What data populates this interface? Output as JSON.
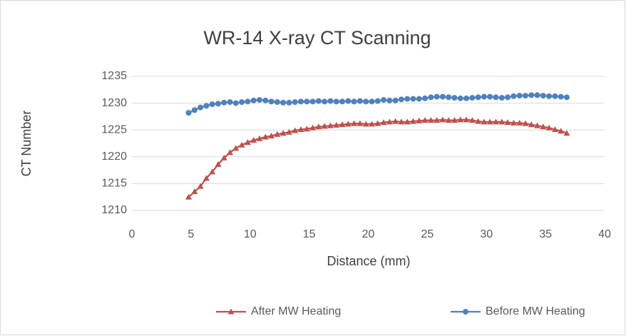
{
  "chart_data": {
    "type": "line",
    "title": "WR-14 X-ray CT Scanning",
    "x_label": "Distance (mm)",
    "y_label": "CT Number",
    "x": [
      4.8,
      5.3,
      5.8,
      6.3,
      6.8,
      7.3,
      7.8,
      8.3,
      8.8,
      9.3,
      9.8,
      10.3,
      10.8,
      11.3,
      11.8,
      12.3,
      12.8,
      13.3,
      13.8,
      14.3,
      14.8,
      15.3,
      15.8,
      16.3,
      16.8,
      17.3,
      17.8,
      18.3,
      18.8,
      19.3,
      19.8,
      20.3,
      20.8,
      21.3,
      21.8,
      22.3,
      22.8,
      23.3,
      23.8,
      24.3,
      24.8,
      25.3,
      25.8,
      26.3,
      26.8,
      27.3,
      27.8,
      28.3,
      28.8,
      29.3,
      29.8,
      30.3,
      30.8,
      31.3,
      31.8,
      32.3,
      32.8,
      33.3,
      33.8,
      34.3,
      34.8,
      35.3,
      35.8,
      36.3,
      36.8
    ],
    "series": [
      {
        "name": "After MW Heating",
        "color": "#c0504d",
        "marker": "triangle",
        "values": [
          1212.5,
          1213.5,
          1214.5,
          1216,
          1217.2,
          1218.6,
          1219.8,
          1220.8,
          1221.6,
          1222.2,
          1222.7,
          1223.1,
          1223.4,
          1223.7,
          1223.9,
          1224.2,
          1224.4,
          1224.6,
          1224.9,
          1225.1,
          1225.2,
          1225.4,
          1225.6,
          1225.7,
          1225.8,
          1225.9,
          1226,
          1226.1,
          1226.2,
          1226.2,
          1226.1,
          1226.1,
          1226.2,
          1226.4,
          1226.5,
          1226.6,
          1226.5,
          1226.5,
          1226.6,
          1226.7,
          1226.8,
          1226.8,
          1226.8,
          1226.9,
          1226.8,
          1226.8,
          1226.9,
          1226.9,
          1226.8,
          1226.6,
          1226.5,
          1226.5,
          1226.5,
          1226.5,
          1226.4,
          1226.3,
          1226.3,
          1226.2,
          1226,
          1225.8,
          1225.6,
          1225.4,
          1225.1,
          1224.8,
          1224.4
        ]
      },
      {
        "name": "Before MW Heating",
        "color": "#4f81bd",
        "marker": "circle",
        "values": [
          1228.2,
          1228.7,
          1229.2,
          1229.5,
          1229.8,
          1229.9,
          1230.1,
          1230.2,
          1230,
          1230.2,
          1230.3,
          1230.5,
          1230.6,
          1230.5,
          1230.3,
          1230.2,
          1230.1,
          1230.1,
          1230.2,
          1230.3,
          1230.3,
          1230.3,
          1230.4,
          1230.3,
          1230.4,
          1230.3,
          1230.3,
          1230.4,
          1230.3,
          1230.4,
          1230.3,
          1230.3,
          1230.4,
          1230.6,
          1230.5,
          1230.5,
          1230.7,
          1230.8,
          1230.8,
          1230.8,
          1230.9,
          1231.1,
          1231.2,
          1231.2,
          1231.1,
          1231,
          1230.9,
          1230.9,
          1231,
          1231.1,
          1231.2,
          1231.2,
          1231.1,
          1231,
          1231.1,
          1231.3,
          1231.4,
          1231.4,
          1231.5,
          1231.5,
          1231.4,
          1231.3,
          1231.3,
          1231.2,
          1231.1
        ]
      }
    ],
    "xlim": [
      0,
      40
    ],
    "xticks": [
      0,
      5,
      10,
      15,
      20,
      25,
      30,
      35,
      40
    ],
    "ylim": [
      1210,
      1235
    ],
    "yticks": [
      1210,
      1215,
      1220,
      1225,
      1230,
      1235
    ],
    "grid": true,
    "legend": "bottom"
  }
}
